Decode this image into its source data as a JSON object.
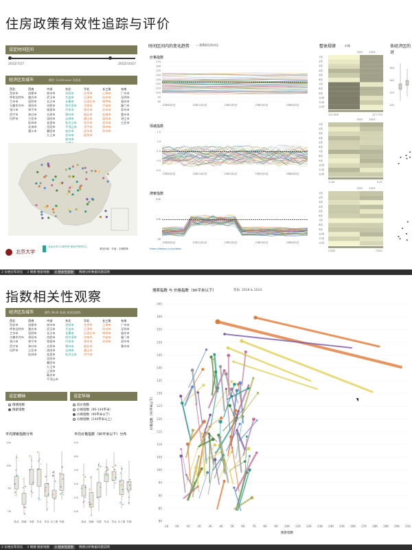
{
  "top": {
    "title": "住房政策有效性追踪与评价",
    "date_section": "设定时间区间",
    "date_start": "2022/7/27",
    "date_end": "2022/10/27",
    "region_section": "经济区及城市",
    "region_hint": "颜色: Continuous 可多选",
    "regions": [
      {
        "name": "西北",
        "cities": [
          "西安市",
          "呼和浩特市",
          "兰州市",
          "乌鲁木齐市",
          "银川市",
          "西宁市",
          "拉萨市"
        ]
      },
      {
        "name": "西南",
        "cities": [
          "成都市",
          "重庆市",
          "昆明市",
          "贵阳市",
          "南宁市",
          "海口市",
          "三亚市",
          "桂林市",
          "北海市",
          "遵义市"
        ]
      },
      {
        "name": "中部",
        "cities": [
          "郑州市",
          "武汉市",
          "长沙市",
          "合肥市",
          "南昌市",
          "太原市",
          "洛阳市",
          "宜昌市",
          "岳阳市",
          "襄阳市",
          "九江市"
        ]
      },
      {
        "name": "东北",
        "cities": [
          "沈阳市",
          "大连市",
          "长春市",
          "哈尔滨市",
          "丹东市",
          "锦州市",
          "吉林市",
          "牡丹江市",
          "平顶山市",
          "安庆市",
          "沧州市",
          "郑州市",
          "淄博市",
          "秦皇岛市"
        ]
      },
      {
        "name": "华北",
        "cities": [
          "北京市",
          "天津市",
          "石家庄市",
          "济南市",
          "青岛市",
          "烟台市",
          "唐山市",
          "包头市",
          "济宁市",
          "泉州市",
          "韶关市"
        ]
      },
      {
        "name": "长三角",
        "cities": [
          "上海市",
          "杭州市",
          "南京市",
          "宁波市",
          "苏州市",
          "无锡市",
          "温州市",
          "金华市",
          "扬州市",
          "徐州市"
        ]
      },
      {
        "name": "东南",
        "cities": [
          "广州市",
          "深圳市",
          "福州市",
          "厦门市",
          "泉州市",
          "惠州市",
          "湛江市",
          "三亚市"
        ]
      }
    ],
    "footer_link": "https://datavis.cn/vis/data",
    "footer_text": "原创作者 · 作者：王朝阳等",
    "trend_title": "时间区间内的变化趋势",
    "trend_legend": "— 政策前后的对比",
    "price_label": "价格指数",
    "sentiment_label": "情绪指数",
    "search_label": "搜索指数",
    "date_ticks": [
      "22年8月1日",
      "22年11月1日",
      "23年2月1日",
      "23年5月1日",
      "23年8月1日"
    ],
    "price_yticks": [
      "170",
      "160",
      "150",
      "140",
      "130",
      "120",
      "110",
      "100",
      "90",
      "80"
    ],
    "sentiment_yticks": [
      "1.5",
      "1.0",
      "0.5",
      "0.0",
      "-0.5"
    ],
    "search_yticks": [
      "20K",
      "10K",
      "0K"
    ],
    "overall_title": "整体规律",
    "overall_note": "价格",
    "year_a": "2022",
    "year_b": "2023",
    "months": [
      "1月",
      "2月",
      "3月",
      "4月",
      "5月",
      "6月",
      "7月",
      "8月",
      "9月",
      "10月",
      "11月",
      "12月"
    ],
    "range1": [
      "122.496",
      "127.724"
    ],
    "range2": [
      "-0.04",
      "9.47"
    ],
    "range3": [
      "2,632",
      "7,991"
    ],
    "econ_title": "各经济区的对",
    "econ_axis": [
      "160",
      "140",
      "120",
      "100"
    ]
  },
  "bottom": {
    "title": "指数相关性观察",
    "region_section": "经济区及城市",
    "region_hint": "颜色 (Multi 多选) 经济区颜色",
    "regions": [
      {
        "name": "西北",
        "cities": [
          "西安市",
          "呼和浩特市",
          "兰州市",
          "乌鲁木齐市",
          "银川市",
          "西宁市",
          "拉萨市"
        ]
      },
      {
        "name": "西南",
        "cities": [
          "成都市",
          "重庆市",
          "昆明市",
          "贵阳市",
          "南宁市",
          "海口市",
          "三亚市",
          "桂林市"
        ]
      },
      {
        "name": "中部",
        "cities": [
          "郑州市",
          "武汉市",
          "长沙市",
          "合肥市",
          "南昌市",
          "太原市",
          "洛阳市",
          "宜昌市",
          "岳阳市",
          "襄阳市",
          "九江市",
          "上饶市",
          "赣州市",
          "平顶山市"
        ]
      },
      {
        "name": "东北",
        "cities": [
          "沈阳市",
          "大连市",
          "长春市",
          "哈尔滨市",
          "丹东市",
          "锦州市",
          "吉林市",
          "牡丹江市"
        ]
      },
      {
        "name": "华北",
        "cities": [
          "北京市",
          "天津市",
          "石家庄市",
          "济南市",
          "青岛市",
          "烟台市",
          "唐山市",
          "济宁市"
        ]
      },
      {
        "name": "长三角",
        "cities": [
          "上海市",
          "杭州市",
          "南京市",
          "宁波市",
          "苏州市"
        ]
      },
      {
        "name": "东南",
        "cities": [
          "广州市",
          "深圳市",
          "福州市",
          "厦门市",
          "泉州市",
          "惠州市"
        ]
      }
    ],
    "index_section": "设定横轴",
    "index_opts": [
      "情绪指数",
      "搜索指数"
    ],
    "filter_section": "设定纵轴",
    "filter_opts": [
      "房价指数",
      "价格指数（90-144平米）",
      "价格指数（90平米以下）",
      "价格指数（144平米以上）"
    ],
    "box1_title": "平均搜索指数分布",
    "box2_title": "平均价格指数（90平米以下）分布",
    "box_regions": [
      "西北",
      "西南",
      "中部",
      "东北",
      "华北",
      "长三角",
      "东南"
    ],
    "box1_yticks": [
      "15K",
      "10K",
      "5K",
      "0K"
    ],
    "box2_yticks": [
      "150",
      "140",
      "130",
      "120",
      "110",
      "100"
    ],
    "scatter_title": "搜索指数 与 价格指数（90平米以下）",
    "scatter_years": "年份: 2018 & 2024",
    "scatter_yaxis": "价格指数（90平米以下）",
    "scatter_xaxis": "搜索指数",
    "scatter_xticks": [
      "-1K",
      "0K",
      "1K",
      "2K",
      "3K",
      "4K",
      "5K",
      "6K",
      "7K",
      "8K",
      "9K",
      "10K",
      "11K",
      "12K",
      "13K",
      "14K",
      "15K",
      "16K",
      "17K",
      "18K",
      "19K",
      "20K",
      "21K"
    ],
    "scatter_yticks": [
      "165",
      "160",
      "155",
      "150",
      "145",
      "140",
      "135",
      "130",
      "125",
      "120",
      "115",
      "110",
      "105",
      "100",
      "95",
      "90",
      "85",
      "80"
    ]
  },
  "tabs": [
    "2 价格分布对比",
    "3 情绪·搜索地图",
    "4 相关性观察",
    "情绪分析数据问题说明"
  ],
  "colors": {
    "olive": "#7a7a56",
    "orange": "#e07b39",
    "yellow": "#e2d15a",
    "purple": "#7b57a6",
    "teal": "#2e9e8f",
    "gray": "#9a9a9a"
  }
}
